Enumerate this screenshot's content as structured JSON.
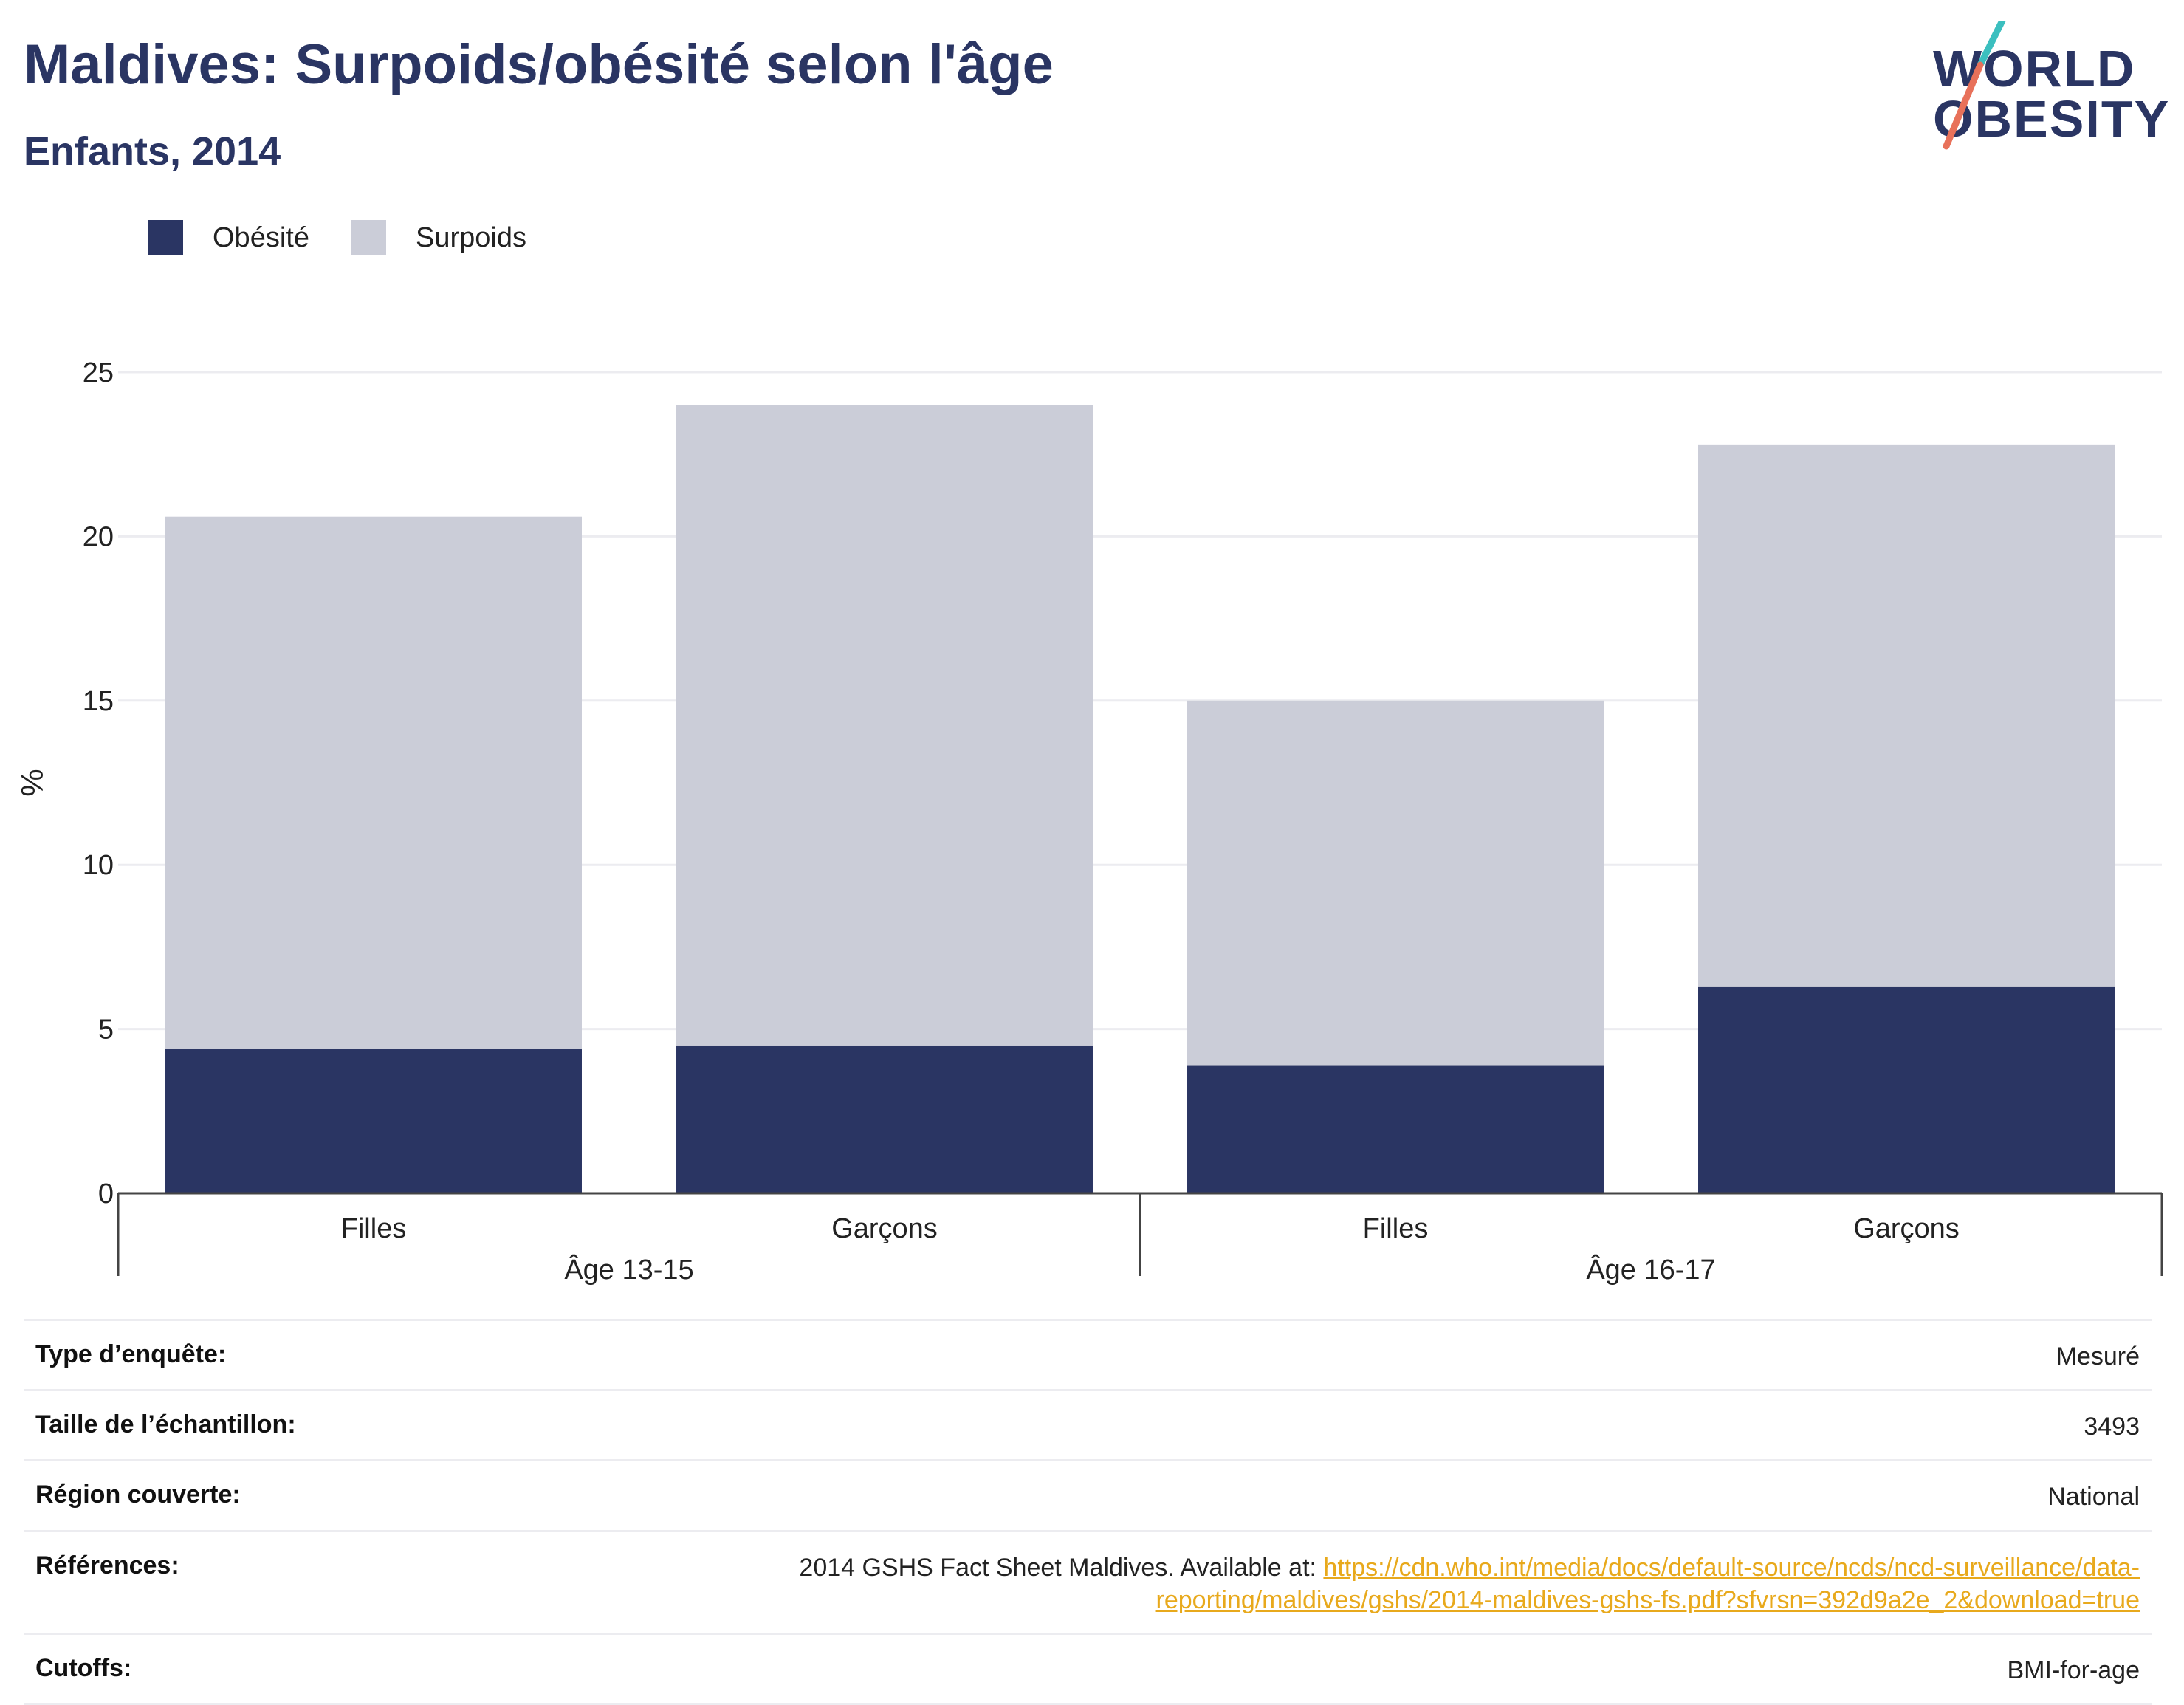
{
  "header": {
    "title": "Maldives: Surpoids/obésité selon l'âge",
    "subtitle": "Enfants, 2014"
  },
  "logo": {
    "line1": "WORLD",
    "line2": "OBESITY"
  },
  "colors": {
    "obesity": "#2a3563",
    "overweight": "#cbcdd8",
    "accent_teal": "#3bbfbf",
    "accent_coral": "#e8715a",
    "link": "#e8a91c"
  },
  "chart_data": {
    "type": "bar",
    "stacked": true,
    "groups": [
      {
        "label": "Âge 13-15",
        "categories": [
          "Filles",
          "Garçons"
        ]
      },
      {
        "label": "Âge 16-17",
        "categories": [
          "Filles",
          "Garçons"
        ]
      }
    ],
    "categories": [
      "Filles",
      "Garçons",
      "Filles",
      "Garçons"
    ],
    "series": [
      {
        "name": "Obésité",
        "color": "#2a3563",
        "values": [
          4.4,
          4.5,
          3.9,
          6.3
        ]
      },
      {
        "name": "Surpoids",
        "color": "#cbcdd8",
        "values": [
          16.2,
          19.5,
          11.1,
          16.5
        ]
      }
    ],
    "ylabel": "%",
    "ylim": [
      0,
      25
    ],
    "yticks": [
      "0",
      "5",
      "10",
      "15",
      "20",
      "25"
    ],
    "grid": true,
    "legend_position": "top-left"
  },
  "info": [
    {
      "key": "Type d’enquête:",
      "value": "Mesuré"
    },
    {
      "key": "Taille de l’échantillon:",
      "value": "3493"
    },
    {
      "key": "Région couverte:",
      "value": "National"
    },
    {
      "key": "Références:",
      "value": "2014 GSHS Fact Sheet Maldives. Available at: ",
      "link": "https://cdn.who.int/media/docs/default-source/ncds/ncd-surveillance/data-reporting/maldives/gshs/2014-maldives-gshs-fs.pdf?sfvrsn=392d9a2e_2&download=true"
    },
    {
      "key": "Cutoffs:",
      "value": "BMI-for-age"
    }
  ]
}
